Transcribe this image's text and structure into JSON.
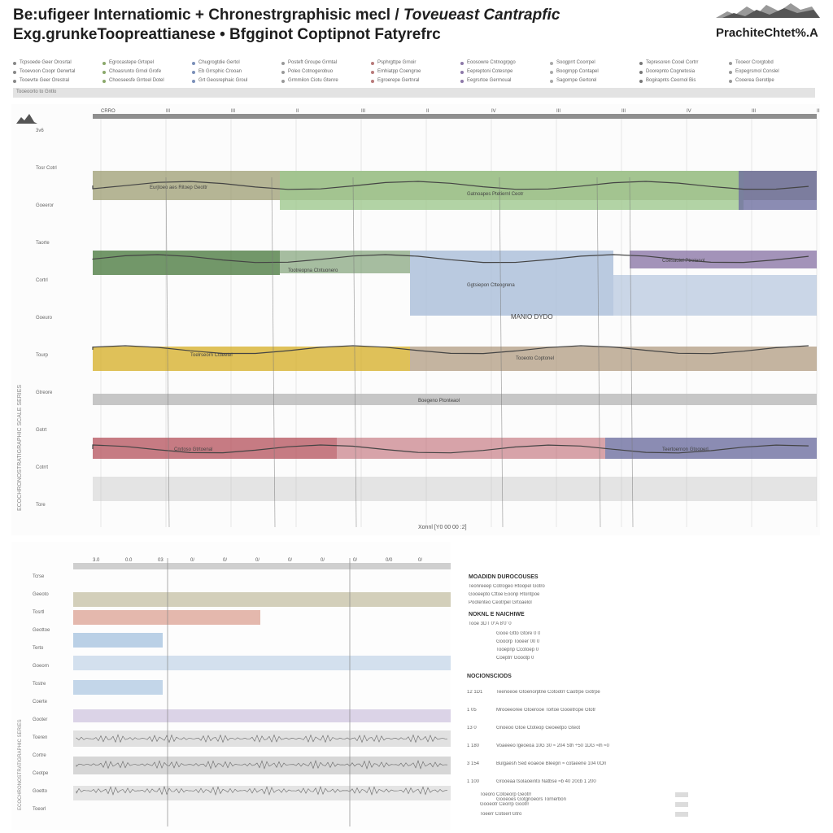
{
  "header": {
    "title_line1_a": "Be:ufigeer Internatiomic + Chronestrgraphisic mecl / ",
    "title_line1_b": "Toveueast Cantrapfic",
    "title_line2": "Exg.grunkeTooprеattianese  • Bfgginot Coptipnot Fatyrefrc",
    "right_title": "PrachiteChtet%.A",
    "logo_icon": "mountain-logo-icon"
  },
  "legend": {
    "columns": [
      [
        "Tcpsoede Geer Orosrtal",
        "Tooevoon Coopr Oerwrtal",
        "Tooevrte Geer Orestral"
      ],
      [
        "Egrocastepe Grtopel",
        "Choasrunto Grnol Grofe",
        "Chooseesfe Grrtoel Dotel"
      ],
      [
        "Chugrogtdie Gertol",
        "Eb Grrsphic Crooan",
        "Grt Geosrephaic Groul"
      ],
      [
        "Posteft Groupe Grmtal",
        "Poleo Cotnogerobuo",
        "Grmmilon Ciotu Gtenre"
      ],
      [
        "Psphrgttpe Grnoir",
        "Emhiatpp Coengroe",
        "Egroerepe Gertnral"
      ],
      [
        "Eoosowre Cntnogrpgo",
        "Eepreptoni Cotesnpe",
        "Eegrsrtoe Gerrnoual"
      ],
      [
        "Soogprrt Coorrpel",
        "Boogrnpp Contapel",
        "Sagornpe Gertorel"
      ],
      [
        "Tepresoren Cooel Cortrr",
        "Doorepnto Cognetosia",
        "Bogirapnts Ceornol Bis"
      ],
      [
        "Tooeor Crorgtobd",
        "Eopegrsmol Conslel",
        "Cooerea Gerotlpe"
      ]
    ],
    "bar_label": "Tooeoorto to Gntlo"
  },
  "main_chart": {
    "axis_title": "ECOCHRONOSTRATIGRAPHIC SCALE SERIES",
    "tick_labels": [
      "CRRO",
      "III",
      "III",
      "II",
      "III",
      "II",
      "IV",
      "III",
      "III",
      "IV",
      "III",
      "III"
    ],
    "bands": [
      {
        "name": "band-olive",
        "label": "Eurjtoeo aes Ritoep Geottr",
        "color": "#a3a37a"
      },
      {
        "name": "band-green",
        "label": "Gatnoapes Ptetiernl Ceotr",
        "color": "#9fc88e"
      },
      {
        "name": "band-darkgreen",
        "label": "Tootreopna Ctntuonero",
        "color": "#4f7d44"
      },
      {
        "name": "band-blue",
        "label": "Ggtsiepon Ctteogrena",
        "color": "#a9bdd8"
      },
      {
        "name": "band-purple",
        "label": "Coesaoiel Ptretenol",
        "color": "#8c78a8"
      },
      {
        "name": "band-gold",
        "label": "Toelrseorn Cttieetel",
        "color": "#d7b230"
      },
      {
        "name": "band-brown",
        "label": "Tooeoto Coptonel",
        "color": "#9f8462"
      },
      {
        "name": "band-gray",
        "label": "Boegeno Ptonteaol",
        "color": "#b8b8b8"
      },
      {
        "name": "band-red",
        "label": "Cnrtoso Gtrtoenal",
        "color": "#b85a64"
      },
      {
        "name": "band-indigo",
        "label": "Teertoernon Gtooperl",
        "color": "#6e6fa0"
      }
    ],
    "mid_label": "MANIO  DYDO",
    "x_axis_label": "Xonnl  [Y0 00 00  :2]",
    "left_side_labels": [
      "3v6",
      "Tosr Cotrl",
      "Goeeror",
      "Taorte",
      "Cortrl",
      "Goeuro",
      "Tourp",
      "Gtreore",
      "Gotrt",
      "Cotrrt",
      "Tore"
    ]
  },
  "bottom_chart": {
    "tick_labels": [
      "3.0",
      "0.0",
      "03",
      "0/",
      "0/",
      "0/",
      "0/",
      "0/",
      "0/",
      "0/0",
      "0/",
      "0/"
    ],
    "row_labels": [
      "Tcrse",
      "Geeoto",
      "Tosrtl",
      "Geottoe",
      "Terto",
      "Goeorn",
      "Tostre",
      "Coerte",
      "Gooter",
      "Toeren",
      "Cortre",
      "Ceotpe",
      "Goetto",
      "Toeorl"
    ],
    "side_label": "ECOCHRONOSTRATIGRAPHIC SERIES"
  },
  "notes": {
    "section1_title": "MOADIDN DUROCOUSES",
    "section2_title": "NOKNL E NAICHIWE",
    "section2_sub": "Tooe  3DT  0°A  8'0'  0",
    "section3_title": "NOCIONSCIODS",
    "section1_lines": [
      "Teonreeep Cotrogeo Rtoopel Gotro",
      "Gooeepto Cttoe Eoonp Rtontpoe",
      "Pootenteo Ceotrpel Grtoaelol"
    ],
    "section2_lines": [
      "Gooe  Gtto  Gtore  0 0",
      "Gooorp  Tooeer  00  0",
      "Tooepnp  Ccotoep  0",
      "Coeptrr  Goootp  0"
    ],
    "section3_rows": [
      {
        "id": "12 1D1",
        "text": "Teenoeoe Gtoenorptne Cotootrr Caotrpe  Gotrpe"
      },
      {
        "id": "1  05",
        "text": "Mrooeeoree Gtoerooe Tortoe Gooetrope  Gtotr"
      },
      {
        "id": "13  0",
        "text": "Gnoeoo Gtoe  Ctoteop Geoeetpo  Gteot"
      },
      {
        "id": "1  180",
        "text": "Voaeeeo lgeoeoa  10G 30  ≈ 204  Sth  ÷50  1DG  ≈lh  ≈0"
      },
      {
        "id": "3  154",
        "text": "Bulgaesh  Sed  eoaeoe  Bleepn  ≈ cotaeene  104  0On"
      },
      {
        "id": "1  100",
        "text": "Grooeaa  tsolaoeinto  Natbse  ≈b  40  20cb  1 200"
      },
      {
        "id": "",
        "text": "Gooeoes  Gotgnoeors  Tornerbon"
      }
    ],
    "footer_lines": [
      "Toeoro Cotoeorp Geotrr",
      "Gooeotr Ceorrp Gootrr",
      "Toeerr Cotoerl Gtro"
    ]
  }
}
